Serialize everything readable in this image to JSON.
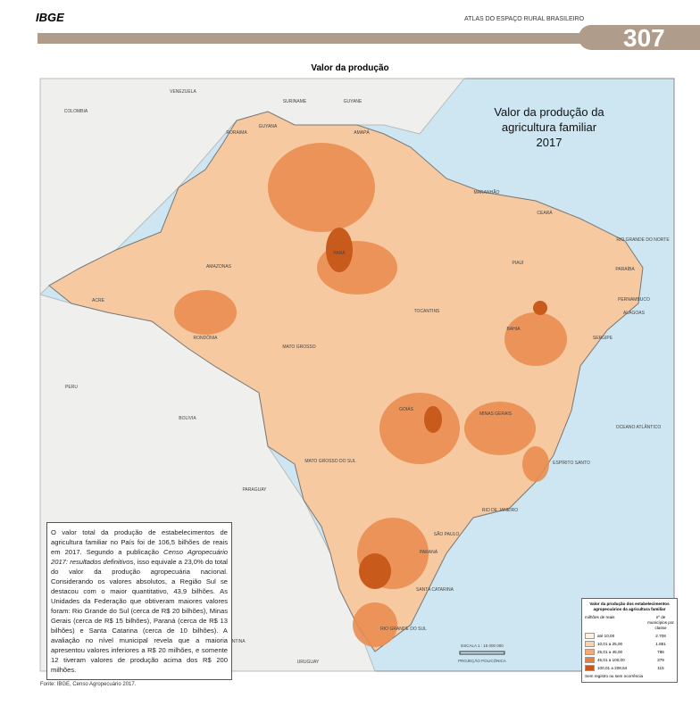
{
  "header": {
    "logo": "IBGE",
    "atlas": "ATLAS DO ESPAÇO RURAL BRASILEIRO",
    "page": "307"
  },
  "section_title": "Valor da produção",
  "map": {
    "title": [
      "Valor da produção da",
      "agricultura familiar",
      "2017"
    ],
    "labels": [
      "VENEZUELA",
      "COLOMBIA",
      "GUYANA",
      "SURINAME",
      "GUYANE",
      "RORAIMA",
      "AMAPÁ",
      "AMAZONAS",
      "PARÁ",
      "MARANHÃO",
      "CEARÁ",
      "RIO GRANDE DO NORTE",
      "PARAÍBA",
      "PERNAMBUCO",
      "ALAGOAS",
      "SERGIPE",
      "PIAUÍ",
      "TOCANTINS",
      "BAHIA",
      "ACRE",
      "RONDÔNIA",
      "MATO GROSSO",
      "PERU",
      "BOLIVIA",
      "GOIÁS",
      "MINAS GERAIS",
      "ESPÍRITO SANTO",
      "MATO GROSSO DO SUL",
      "PARAGUAY",
      "SÃO PAULO",
      "RIO DE JANEIRO",
      "PARANÁ",
      "SANTA CATARINA",
      "RIO GRANDE DO SUL",
      "URUGUAY",
      "ARGENTINA",
      "OCEANO ATLÂNTICO"
    ],
    "scale": "ESCALA 1 : 15 000 000",
    "projection": "PROJEÇÃO POLICÔNICA"
  },
  "text_box": {
    "parts": [
      "O valor total da produção de estabelecimentos de agricultura familiar no País foi de 106,5 bilhões de reais em 2017. Segundo a publicação ",
      "Censo Agropecuário 2017: resultados definitivos",
      ", isso equivale a 23,0% do total do valor da produção agropecuária nacional. Considerando os valores absolutos, a Região Sul se destacou com o maior quantitativo, 43,9 bilhões. As Unidades da Federação que obtiveram maiores valores foram: Rio Grande do Sul (cerca de R$ 20 bilhões), Minas Gerais (cerca de R$ 15 bilhões), Paraná (cerca de R$ 13 bilhões) e Santa Catarina (cerca de 10 bilhões). A avaliação no nível municipal revela que a maioria apresentou valores inferiores a R$ 20 milhões, e somente 12 tiveram valores de produção acima dos R$ 200 milhões."
    ]
  },
  "legend": {
    "title": "Valor da produção dos estabelecimentos agropecuários da agricultura familiar",
    "col1": "milhões de reais",
    "col2": "nº de municípios por classe",
    "rows": [
      [
        "até 10,00",
        "2.708"
      ],
      [
        "10,01 a 25,00",
        "1.881"
      ],
      [
        "25,01 a 45,00",
        "786"
      ],
      [
        "45,01 a 100,00",
        "379"
      ],
      [
        "100,01 a 208,64",
        "115"
      ]
    ],
    "note": "Sem registro ou sem ocorrência"
  },
  "source": "Fonte: IBGE, Censo Agropecuário 2017."
}
